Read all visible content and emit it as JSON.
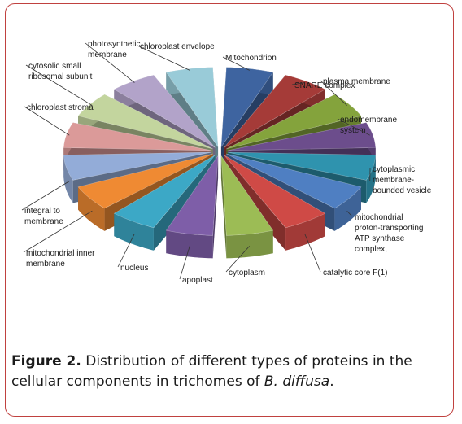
{
  "figure": {
    "label": "Figure 2.",
    "caption_text": " Distribution of different types of proteins in the cellular components in trichomes of ",
    "species": "B. diffusa",
    "period": "."
  },
  "chart_data": {
    "type": "pie",
    "style": "3d-exploded",
    "legend": "none",
    "slices": [
      {
        "label": "Mitochondrion",
        "value": 1,
        "color": "#3e64a0"
      },
      {
        "label": "SNARE complex",
        "value": 1,
        "color": "#a53b38"
      },
      {
        "label": "plasma membrane",
        "value": 1,
        "color": "#84a33c"
      },
      {
        "label": "endomembrane system",
        "value": 1,
        "color": "#6c4d8c"
      },
      {
        "label": "cytoplasmic membrane-bounded vesicle",
        "value": 1,
        "color": "#2f93ae"
      },
      {
        "label": "mitochondrial proton-transporting ATP synthase complex,",
        "value": 1,
        "color": "#4f7fc2"
      },
      {
        "label": "catalytic core F(1)",
        "value": 1,
        "color": "#cf4a46"
      },
      {
        "label": "cytoplasm",
        "value": 1,
        "color": "#9cbc55"
      },
      {
        "label": "apoplast",
        "value": 1,
        "color": "#7e5ea8"
      },
      {
        "label": "nucleus",
        "value": 1,
        "color": "#3ca8c6"
      },
      {
        "label": "mitochondrial inner membrane",
        "value": 1,
        "color": "#ef8a33"
      },
      {
        "label": "integral to membrane",
        "value": 1,
        "color": "#93acd8"
      },
      {
        "label": "chloroplast stroma",
        "value": 1,
        "color": "#db9a99"
      },
      {
        "label": "cytosolic small ribosomal subunit",
        "value": 1,
        "color": "#c3d59e"
      },
      {
        "label": "photosynthetic membrane",
        "value": 1,
        "color": "#b2a3c9"
      },
      {
        "label": "chloroplast envelope",
        "value": 1,
        "color": "#99cbd8"
      }
    ]
  }
}
